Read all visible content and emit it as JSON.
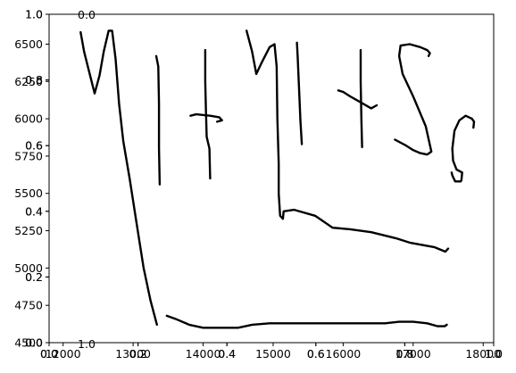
{
  "chart_data": {
    "type": "line",
    "title": "",
    "xlabel": "",
    "ylabel": "",
    "xlim": [
      11800,
      18150
    ],
    "ylim": [
      4500,
      6700
    ],
    "grid": false,
    "legend": "none",
    "x_ticks": [
      "12000",
      "13000",
      "14000",
      "15000",
      "16000",
      "17000",
      "18000"
    ],
    "y_ticks": [
      "4500",
      "4750",
      "5000",
      "5250",
      "5500",
      "5750",
      "6000",
      "6250",
      "6500"
    ],
    "overlay_axes": [
      {
        "x_ticks": [
          "0.0",
          "0.2",
          "0.4",
          "0.6",
          "0.8",
          "1.0"
        ],
        "y_ticks": [
          "0.0",
          "0.2",
          "0.4",
          "0.6",
          "0.8",
          "1.0"
        ]
      },
      {
        "x_ticks": [
          "0.0",
          "0.2",
          "0.4",
          "0.6",
          "0.8",
          "1.0"
        ],
        "y_ticks": [
          "0.0",
          "0.2",
          "0.4",
          "0.6",
          "0.8",
          "1.0"
        ]
      }
    ],
    "stray_labels": [
      "0.0",
      "1.0"
    ],
    "series": [
      {
        "color": "#000000",
        "points": [
          [
            12250,
            6580
          ],
          [
            12300,
            6450
          ],
          [
            12380,
            6300
          ],
          [
            12450,
            6170
          ],
          [
            12520,
            6290
          ],
          [
            12580,
            6450
          ],
          [
            12650,
            6590
          ],
          [
            12700,
            6590
          ],
          [
            12750,
            6400
          ],
          [
            12800,
            6100
          ],
          [
            12860,
            5850
          ],
          [
            12950,
            5600
          ],
          [
            13050,
            5300
          ],
          [
            13150,
            5000
          ],
          [
            13250,
            4780
          ],
          [
            13340,
            4620
          ]
        ]
      },
      {
        "color": "#000000",
        "points": [
          [
            13330,
            6420
          ],
          [
            13360,
            6350
          ],
          [
            13370,
            6100
          ],
          [
            13370,
            5800
          ],
          [
            13380,
            5560
          ]
        ]
      },
      {
        "color": "#000000",
        "points": [
          [
            13820,
            6020
          ],
          [
            13900,
            6030
          ],
          [
            14100,
            6020
          ],
          [
            14230,
            6010
          ],
          [
            14270,
            5990
          ],
          [
            14200,
            5980
          ]
        ]
      },
      {
        "color": "#000000",
        "points": [
          [
            14030,
            6460
          ],
          [
            14030,
            6250
          ],
          [
            14040,
            6050
          ],
          [
            14050,
            5880
          ],
          [
            14090,
            5800
          ],
          [
            14100,
            5600
          ]
        ]
      },
      {
        "color": "#000000",
        "points": [
          [
            14620,
            6590
          ],
          [
            14700,
            6450
          ],
          [
            14760,
            6300
          ],
          [
            14830,
            6370
          ],
          [
            14950,
            6480
          ],
          [
            15020,
            6500
          ],
          [
            15050,
            6350
          ],
          [
            15060,
            6000
          ],
          [
            15080,
            5700
          ],
          [
            15080,
            5500
          ],
          [
            15100,
            5350
          ],
          [
            15140,
            5330
          ],
          [
            15150,
            5380
          ],
          [
            15300,
            5390
          ],
          [
            15600,
            5350
          ],
          [
            15850,
            5270
          ],
          [
            16100,
            5260
          ],
          [
            16400,
            5240
          ],
          [
            16750,
            5200
          ],
          [
            16950,
            5170
          ],
          [
            17300,
            5140
          ],
          [
            17460,
            5110
          ],
          [
            17500,
            5130
          ]
        ]
      },
      {
        "color": "#000000",
        "points": [
          [
            15340,
            6510
          ],
          [
            15350,
            6420
          ],
          [
            15370,
            6200
          ],
          [
            15390,
            5990
          ],
          [
            15410,
            5830
          ]
        ]
      },
      {
        "color": "#000000",
        "points": [
          [
            15930,
            6190
          ],
          [
            16000,
            6180
          ],
          [
            16100,
            6150
          ],
          [
            16250,
            6110
          ],
          [
            16400,
            6070
          ],
          [
            16480,
            6090
          ]
        ]
      },
      {
        "color": "#000000",
        "points": [
          [
            16250,
            6460
          ],
          [
            16250,
            6250
          ],
          [
            16260,
            6000
          ],
          [
            16270,
            5810
          ]
        ]
      },
      {
        "color": "#000000",
        "points": [
          [
            16740,
            5860
          ],
          [
            16900,
            5820
          ],
          [
            17000,
            5790
          ],
          [
            17100,
            5770
          ],
          [
            17200,
            5760
          ],
          [
            17260,
            5780
          ],
          [
            17180,
            5950
          ],
          [
            17000,
            6150
          ],
          [
            16850,
            6300
          ],
          [
            16800,
            6420
          ],
          [
            16820,
            6490
          ],
          [
            16950,
            6500
          ],
          [
            17100,
            6480
          ],
          [
            17200,
            6460
          ],
          [
            17240,
            6440
          ],
          [
            17220,
            6420
          ]
        ]
      },
      {
        "color": "#000000",
        "points": [
          [
            17860,
            5940
          ],
          [
            17870,
            5980
          ],
          [
            17840,
            6000
          ],
          [
            17750,
            6020
          ],
          [
            17660,
            5990
          ],
          [
            17590,
            5920
          ],
          [
            17560,
            5800
          ],
          [
            17570,
            5720
          ],
          [
            17620,
            5660
          ],
          [
            17700,
            5640
          ],
          [
            17690,
            5590
          ],
          [
            17680,
            5580
          ],
          [
            17600,
            5580
          ],
          [
            17560,
            5620
          ],
          [
            17550,
            5640
          ]
        ]
      },
      {
        "color": "#000000",
        "points": [
          [
            13480,
            4680
          ],
          [
            13600,
            4660
          ],
          [
            13800,
            4620
          ],
          [
            14000,
            4600
          ],
          [
            14250,
            4600
          ],
          [
            14500,
            4600
          ],
          [
            14700,
            4620
          ],
          [
            14950,
            4630
          ],
          [
            15200,
            4630
          ],
          [
            15600,
            4630
          ],
          [
            16100,
            4630
          ],
          [
            16600,
            4630
          ],
          [
            16800,
            4640
          ],
          [
            17000,
            4640
          ],
          [
            17200,
            4630
          ],
          [
            17350,
            4610
          ],
          [
            17450,
            4610
          ],
          [
            17480,
            4620
          ]
        ]
      }
    ]
  }
}
